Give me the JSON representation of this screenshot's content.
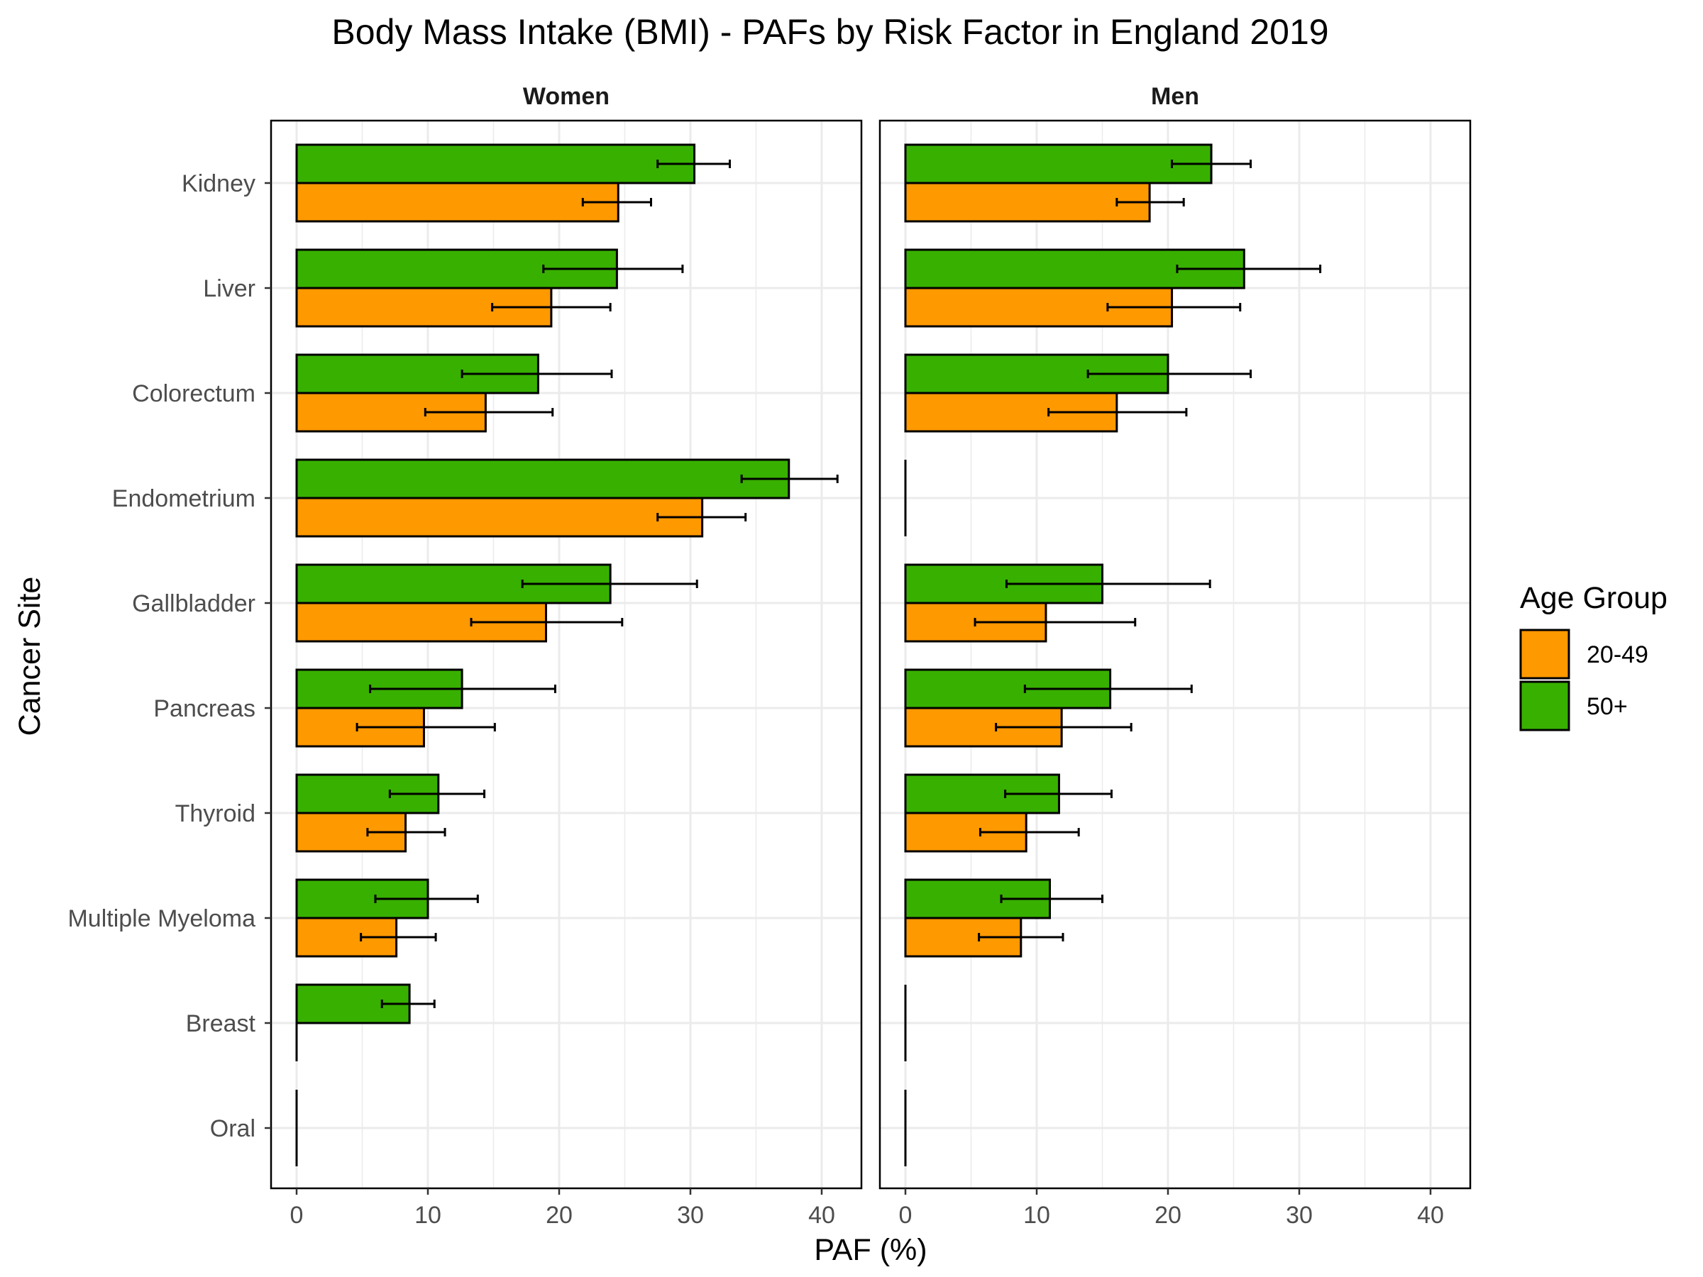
{
  "chart_data": {
    "type": "bar",
    "orientation": "horizontal",
    "title": "Body Mass Intake (BMI)  - PAFs by Risk Factor in England 2019",
    "xlabel": "PAF (%)",
    "ylabel": "Cancer Site",
    "xlim": [
      0,
      43
    ],
    "x_ticks": [
      "0",
      "10",
      "20",
      "30",
      "40"
    ],
    "grid": true,
    "legend": {
      "title": "Age Group",
      "position": "right",
      "entries": [
        {
          "label": "20-49",
          "color": "#ff9900"
        },
        {
          "label": "50+",
          "color": "#38b000"
        }
      ]
    },
    "categories": [
      "Kidney",
      "Liver",
      "Colorectum",
      "Endometrium",
      "Gallbladder",
      "Pancreas",
      "Thyroid",
      "Multiple Myeloma",
      "Breast",
      "Oral"
    ],
    "panels": [
      {
        "name": "Women",
        "series": [
          {
            "name": "20-49",
            "values": [
              24.5,
              19.4,
              14.4,
              30.9,
              19.0,
              9.7,
              8.3,
              7.6,
              0,
              0
            ],
            "ci_low": [
              21.8,
              14.9,
              9.8,
              27.5,
              13.3,
              4.6,
              5.4,
              4.9,
              null,
              null
            ],
            "ci_high": [
              27.0,
              23.9,
              19.5,
              34.2,
              24.8,
              15.1,
              11.3,
              10.6,
              null,
              null
            ]
          },
          {
            "name": "50+",
            "values": [
              30.3,
              24.4,
              18.4,
              37.5,
              23.9,
              12.6,
              10.8,
              10.0,
              8.6,
              0
            ],
            "ci_low": [
              27.5,
              18.8,
              12.6,
              33.9,
              17.2,
              5.6,
              7.1,
              6.0,
              6.5,
              null
            ],
            "ci_high": [
              33.0,
              29.4,
              24.0,
              41.2,
              30.5,
              19.7,
              14.3,
              13.8,
              10.5,
              null
            ]
          }
        ]
      },
      {
        "name": "Men",
        "series": [
          {
            "name": "20-49",
            "values": [
              18.6,
              20.3,
              16.1,
              0,
              10.7,
              11.9,
              9.2,
              8.8,
              0,
              0
            ],
            "ci_low": [
              16.1,
              15.4,
              10.9,
              null,
              5.3,
              6.9,
              5.7,
              5.6,
              null,
              null
            ],
            "ci_high": [
              21.2,
              25.5,
              21.4,
              null,
              17.5,
              17.2,
              13.2,
              12.0,
              null,
              null
            ]
          },
          {
            "name": "50+",
            "values": [
              23.3,
              25.8,
              20.0,
              0,
              15.0,
              15.6,
              11.7,
              11.0,
              0,
              0
            ],
            "ci_low": [
              20.3,
              20.7,
              13.9,
              null,
              7.7,
              9.1,
              7.6,
              7.3,
              null,
              null
            ],
            "ci_high": [
              26.3,
              31.6,
              26.3,
              null,
              23.2,
              21.8,
              15.7,
              15.0,
              null,
              null
            ]
          }
        ]
      }
    ]
  }
}
